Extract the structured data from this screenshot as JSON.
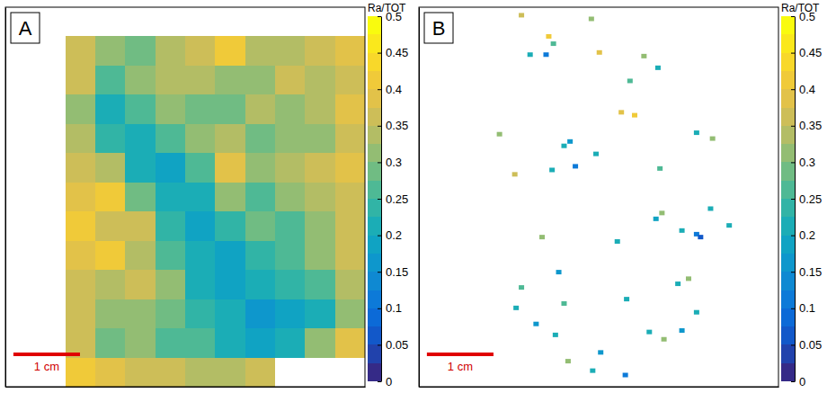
{
  "chart_data": [
    {
      "type": "heatmap",
      "label": "A",
      "tick_labels": false,
      "xlim": [
        0,
        5.4
      ],
      "ylim": [
        0,
        5.2
      ],
      "x": [
        0.225,
        0.675,
        1.125,
        1.575,
        2.025,
        2.475,
        2.925,
        3.375,
        3.825,
        4.275,
        4.725,
        5.175
      ],
      "y": [
        5,
        4.6,
        4.2,
        3.8,
        3.4,
        3,
        2.6,
        2.2,
        1.8,
        1.4,
        1,
        0.6,
        0.2
      ],
      "cells": [
        [
          null,
          null,
          null,
          null,
          null,
          null,
          null,
          null,
          null,
          null,
          null,
          null
        ],
        [
          null,
          null,
          0.37,
          0.31,
          0.29,
          0.33,
          0.36,
          0.41,
          0.34,
          0.33,
          0.36,
          0.39
        ],
        [
          null,
          null,
          0.35,
          0.27,
          0.3,
          0.34,
          0.33,
          0.32,
          0.3,
          0.35,
          0.33,
          0.37
        ],
        [
          null,
          null,
          0.3,
          0.22,
          0.26,
          0.31,
          0.29,
          0.28,
          0.33,
          0.31,
          0.34,
          0.38
        ],
        [
          null,
          null,
          0.33,
          0.24,
          0.2,
          0.25,
          0.3,
          0.34,
          0.29,
          0.32,
          0.3,
          0.37
        ],
        [
          null,
          null,
          0.36,
          0.34,
          0.22,
          0.19,
          0.26,
          0.38,
          0.31,
          0.33,
          0.35,
          0.38
        ],
        [
          null,
          null,
          0.38,
          0.4,
          0.28,
          0.2,
          0.21,
          0.3,
          0.27,
          0.3,
          0.33,
          0.37
        ],
        [
          null,
          null,
          0.4,
          0.37,
          0.35,
          0.23,
          0.19,
          0.23,
          0.28,
          0.26,
          0.31,
          0.36
        ],
        [
          null,
          null,
          0.39,
          0.4,
          0.33,
          0.27,
          0.2,
          0.18,
          0.24,
          0.27,
          0.3,
          0.35
        ],
        [
          null,
          null,
          0.37,
          0.34,
          0.36,
          0.3,
          0.22,
          0.19,
          0.2,
          0.23,
          0.27,
          0.33
        ],
        [
          null,
          null,
          0.35,
          0.3,
          0.31,
          0.28,
          0.24,
          0.2,
          0.17,
          0.19,
          0.22,
          0.3
        ],
        [
          null,
          null,
          0.36,
          0.29,
          0.3,
          0.27,
          0.25,
          0.22,
          0.18,
          0.2,
          0.32,
          0.38
        ],
        [
          null,
          null,
          0.41,
          0.38,
          0.36,
          0.35,
          0.33,
          0.34,
          0.36,
          null,
          null,
          null
        ]
      ],
      "colorbar": {
        "title": "Ra/TOT",
        "range": [
          0,
          0.5
        ],
        "ticks": [
          0,
          0.05,
          0.1,
          0.15,
          0.2,
          0.25,
          0.3,
          0.35,
          0.4,
          0.45,
          0.5
        ]
      },
      "scale_bar": {
        "length": 1,
        "label": "1 cm"
      }
    },
    {
      "type": "scatter",
      "label": "B",
      "tick_labels": false,
      "marker": "square",
      "xlim": [
        0,
        5.4
      ],
      "ylim": [
        0,
        5.2
      ],
      "x": [
        1.54,
        1.95,
        2.02,
        1.91,
        1.67,
        2.71,
        3.59,
        3.17,
        3.04,
        3.24,
        2.27,
        2.18,
        2.66,
        1.21,
        1.44,
        2.0,
        2.35,
        4.17,
        4.41,
        3.62,
        4.38,
        4.66,
        3.56,
        3.65,
        3.95,
        4.17,
        2.98,
        1.85,
        2.1,
        1.54,
        3.12,
        3.89,
        4.05,
        4.17,
        3.68,
        3.46,
        1.76,
        1.46,
        2.05,
        2.73,
        3.1,
        2.61,
        2.24,
        3.95,
        2.18,
        4.23,
        2.59,
        3.38
      ],
      "y": [
        5.09,
        4.8,
        4.7,
        4.55,
        4.55,
        4.58,
        4.37,
        4.19,
        3.76,
        3.72,
        3.36,
        3.3,
        3.19,
        3.46,
        2.91,
        2.97,
        3.02,
        3.48,
        3.4,
        2.99,
        2.44,
        2.21,
        2.3,
        2.38,
        2.14,
        2.09,
        1.99,
        2.05,
        1.57,
        1.36,
        1.2,
        1.41,
        1.48,
        1.02,
        0.65,
        0.75,
        0.86,
        1.08,
        0.71,
        0.47,
        0.16,
        0.22,
        0.35,
        0.77,
        1.14,
        2.05,
        5.04,
        4.53
      ],
      "values": [
        0.35,
        0.4,
        0.25,
        0.12,
        0.2,
        0.38,
        0.2,
        0.25,
        0.38,
        0.4,
        0.15,
        0.22,
        0.2,
        0.3,
        0.35,
        0.2,
        0.1,
        0.22,
        0.3,
        0.25,
        0.22,
        0.2,
        0.18,
        0.3,
        0.2,
        0.1,
        0.22,
        0.3,
        0.15,
        0.25,
        0.2,
        0.22,
        0.3,
        0.2,
        0.3,
        0.2,
        0.15,
        0.2,
        0.2,
        0.15,
        0.12,
        0.2,
        0.3,
        0.15,
        0.25,
        0.06,
        0.3,
        0.3
      ],
      "colorbar": {
        "title": "Ra/TOT",
        "range": [
          0,
          0.5
        ],
        "ticks": [
          0,
          0.05,
          0.1,
          0.15,
          0.2,
          0.25,
          0.3,
          0.35,
          0.4,
          0.45,
          0.5
        ]
      },
      "scale_bar": {
        "length": 1,
        "label": "1 cm"
      }
    }
  ]
}
